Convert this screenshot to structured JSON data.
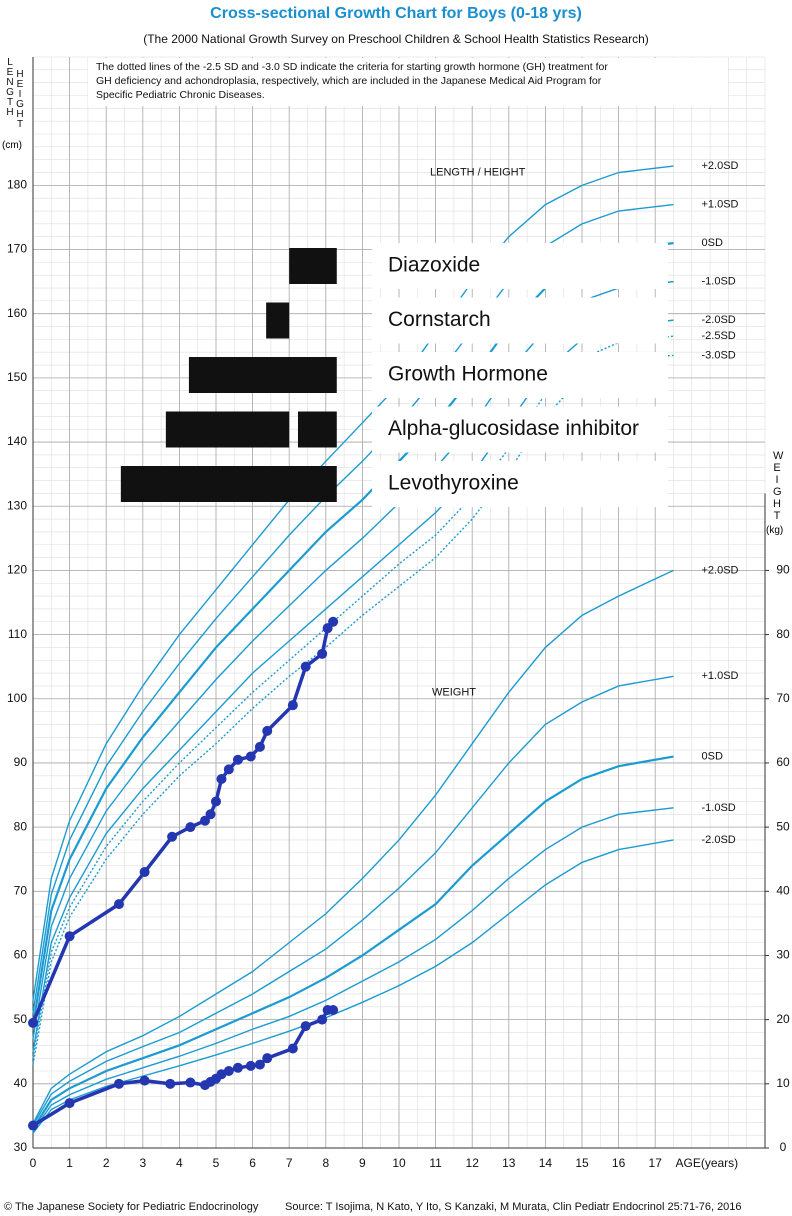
{
  "chart_data": {
    "type": "line",
    "title": "Cross-sectional Growth Chart for Boys (0-18 yrs)",
    "subtitle": "(The 2000 National Growth Survey on Preschool Children & School Health Statistics Research)",
    "note": [
      "The dotted lines of the -2.5 SD and -3.0 SD indicate the criteria for starting growth hormone (GH) treatment for",
      "GH deficiency and achondroplasia, respectively, which are included in the Japanese Medical Aid Program for",
      "Specific Pediatric Chronic Diseases."
    ],
    "copyright": "© The Japanese Society for Pediatric Endocrinology",
    "source": "Source: T Isojima, N Kato, Y Ito, S Kanzaki, M Murata, Clin Pediatr Endocrinol 25:71-76, 2016",
    "xlabel": "AGE(years)",
    "ylabel": [
      "LENGTH",
      "HEIGHT",
      "(cm)"
    ],
    "y2label": [
      "WEIGHT",
      "(kg)"
    ],
    "height_label": "LENGTH / HEIGHT",
    "weight_label": "WEIGHT",
    "xlim": [
      0,
      20
    ],
    "xticks": [
      0,
      1,
      2,
      3,
      4,
      5,
      6,
      7,
      8,
      9,
      10,
      11,
      12,
      13,
      14,
      15,
      16,
      17
    ],
    "ylim": [
      30,
      200
    ],
    "yticks": [
      30,
      40,
      50,
      60,
      70,
      80,
      90,
      100,
      110,
      120,
      130,
      140,
      150,
      160,
      170,
      180
    ],
    "y2lim": [
      0,
      170
    ],
    "y2ticks": [
      0,
      10,
      20,
      30,
      40,
      50,
      60,
      70,
      80,
      90
    ],
    "grid": true,
    "series": [
      {
        "name": "+2.0SD",
        "color": "#1b9bd1",
        "x": [
          0,
          0.5,
          1,
          2,
          3,
          4,
          5,
          6,
          7,
          8,
          9,
          10,
          11,
          12,
          13,
          14,
          15,
          16,
          17.5
        ],
        "values": [
          53,
          72,
          81,
          93,
          102,
          110,
          117,
          124,
          131,
          137,
          143,
          149,
          157,
          165,
          172,
          177,
          180,
          182,
          183
        ]
      },
      {
        "name": "+1.0SD",
        "color": "#1b9bd1",
        "x": [
          0,
          0.5,
          1,
          2,
          3,
          4,
          5,
          6,
          7,
          8,
          9,
          10,
          11,
          12,
          13,
          14,
          15,
          16,
          17.5
        ],
        "values": [
          51,
          69.5,
          78,
          89.5,
          98,
          105.5,
          112.5,
          119,
          125.5,
          131.5,
          137,
          143,
          150,
          157.5,
          165,
          170.5,
          174,
          176,
          177
        ]
      },
      {
        "name": "0SD",
        "color": "#1b9bd1",
        "width": 2.2,
        "x": [
          0,
          0.5,
          1,
          2,
          3,
          4,
          5,
          6,
          7,
          8,
          9,
          10,
          11,
          12,
          13,
          14,
          15,
          16,
          17.5
        ],
        "values": [
          49,
          67,
          75,
          86,
          94,
          101,
          108,
          114,
          120,
          126,
          131,
          137,
          143,
          150,
          158,
          164,
          168,
          170,
          171
        ]
      },
      {
        "name": "-1.0SD",
        "color": "#1b9bd1",
        "x": [
          0,
          0.5,
          1,
          2,
          3,
          4,
          5,
          6,
          7,
          8,
          9,
          10,
          11,
          12,
          13,
          14,
          15,
          16,
          17.5
        ],
        "values": [
          47,
          64.5,
          72,
          82.5,
          90,
          96.5,
          103,
          109,
          114.5,
          120,
          125,
          130.5,
          136,
          142.5,
          151,
          157.5,
          162,
          164,
          165
        ]
      },
      {
        "name": "-2.0SD",
        "color": "#1b9bd1",
        "x": [
          0,
          0.5,
          1,
          2,
          3,
          4,
          5,
          6,
          7,
          8,
          9,
          10,
          11,
          12,
          13,
          14,
          15,
          16,
          17.5
        ],
        "values": [
          45,
          62,
          69,
          79,
          86,
          92,
          98,
          104,
          109,
          114,
          119,
          124,
          129,
          135,
          143,
          151,
          156,
          158,
          159
        ]
      },
      {
        "name": "-2.5SD",
        "color": "#1b9bd1",
        "dotted": true,
        "x": [
          0,
          0.5,
          1,
          2,
          3,
          4,
          5,
          6,
          7,
          8,
          9,
          10,
          11,
          12,
          13,
          14,
          15,
          16,
          17.5
        ],
        "values": [
          44,
          60.5,
          67.5,
          77,
          84,
          90,
          95.5,
          101,
          106,
          111,
          116,
          121,
          125.5,
          131.5,
          139,
          147.5,
          153,
          155.5,
          156.5
        ]
      },
      {
        "name": "-3.0SD",
        "color": "#1b9bd1",
        "dotted": true,
        "x": [
          0,
          0.5,
          1,
          2,
          3,
          4,
          5,
          6,
          7,
          8,
          9,
          10,
          11,
          12,
          13,
          14,
          15,
          16,
          17.5
        ],
        "values": [
          43,
          59,
          66,
          75,
          82,
          88,
          93,
          98.5,
          103.5,
          108,
          113,
          117.5,
          122,
          128,
          135.5,
          144,
          150,
          153,
          153.5
        ]
      },
      {
        "name": "+2.0SD",
        "color": "#1b9bd1",
        "axis": "y2",
        "x": [
          0,
          0.5,
          1,
          2,
          3,
          4,
          5,
          6,
          7,
          8,
          9,
          10,
          11,
          12,
          13,
          14,
          15,
          16,
          17.5
        ],
        "values": [
          3.8,
          9.3,
          11.5,
          15,
          17.5,
          20.5,
          24,
          27.5,
          32,
          36.5,
          42,
          48,
          55,
          63,
          71,
          78,
          83,
          86,
          90
        ]
      },
      {
        "name": "+1.0SD",
        "color": "#1b9bd1",
        "axis": "y2",
        "x": [
          0,
          0.5,
          1,
          2,
          3,
          4,
          5,
          6,
          7,
          8,
          9,
          10,
          11,
          12,
          13,
          14,
          15,
          16,
          17.5
        ],
        "values": [
          3.5,
          8.4,
          10.4,
          13.5,
          15.8,
          18,
          21,
          24,
          27.5,
          31,
          35.5,
          40.5,
          46,
          53,
          60,
          66,
          69.5,
          72,
          73.5
        ]
      },
      {
        "name": "0SD",
        "color": "#1b9bd1",
        "width": 2.2,
        "axis": "y2",
        "x": [
          0,
          0.5,
          1,
          2,
          3,
          4,
          5,
          6,
          7,
          8,
          9,
          10,
          11,
          12,
          13,
          14,
          15,
          16,
          17.5
        ],
        "values": [
          3,
          7.5,
          9.3,
          12,
          14,
          16,
          18.5,
          21,
          23.5,
          26.5,
          30,
          34,
          38,
          44,
          49,
          54,
          57.5,
          59.5,
          61
        ]
      },
      {
        "name": "-1.0SD",
        "color": "#1b9bd1",
        "axis": "y2",
        "x": [
          0,
          0.5,
          1,
          2,
          3,
          4,
          5,
          6,
          7,
          8,
          9,
          10,
          11,
          12,
          13,
          14,
          15,
          16,
          17.5
        ],
        "values": [
          2.6,
          6.7,
          8.3,
          10.7,
          12.5,
          14.3,
          16.3,
          18.5,
          20.5,
          23,
          26,
          29,
          32.5,
          37,
          42,
          46.5,
          50,
          52,
          53
        ]
      },
      {
        "name": "-2.0SD",
        "color": "#1b9bd1",
        "axis": "y2",
        "x": [
          0,
          0.5,
          1,
          2,
          3,
          4,
          5,
          6,
          7,
          8,
          9,
          10,
          11,
          12,
          13,
          14,
          15,
          16,
          17.5
        ],
        "values": [
          2.3,
          6,
          7.5,
          9.6,
          11.2,
          12.8,
          14.5,
          16.3,
          18.2,
          20.3,
          22.7,
          25.3,
          28.3,
          32,
          36.5,
          41,
          44.5,
          46.5,
          48
        ]
      },
      {
        "color": "#2436b0",
        "width": 3.5,
        "marker": true,
        "x": [
          0,
          1,
          2.35,
          3.05,
          3.8,
          4.3,
          4.7,
          4.85,
          5,
          5.15,
          5.35,
          5.6,
          5.95,
          6.2,
          6.4,
          7.1,
          7.45,
          7.9,
          8.05,
          8.2
        ],
        "values": [
          49.5,
          63,
          68,
          73,
          78.5,
          80,
          81,
          82,
          84,
          87.5,
          89,
          90.5,
          91,
          92.5,
          95,
          99,
          105,
          107,
          111,
          112
        ]
      },
      {
        "color": "#2436b0",
        "width": 3.5,
        "marker": true,
        "axis": "y2",
        "x": [
          0,
          1,
          2.35,
          3.05,
          3.75,
          4.3,
          4.7,
          4.85,
          5,
          5.15,
          5.35,
          5.6,
          5.95,
          6.2,
          6.4,
          7.1,
          7.45,
          7.9,
          8.05,
          8.2
        ],
        "values": [
          3.5,
          7,
          10,
          10.5,
          10,
          10.2,
          9.8,
          10.3,
          10.8,
          11.5,
          12,
          12.5,
          12.8,
          13,
          14,
          15.5,
          19,
          20,
          21.5,
          21.5
        ]
      }
    ],
    "treatments": [
      {
        "name": "Diazoxide",
        "periods": [
          [
            7.0,
            8.3
          ]
        ]
      },
      {
        "name": "Cornstarch",
        "periods": [
          [
            6.37,
            7.0
          ]
        ]
      },
      {
        "name": "Growth Hormone",
        "periods": [
          [
            4.26,
            8.3
          ]
        ]
      },
      {
        "name": "Alpha-glucosidase inhibitor",
        "periods": [
          [
            3.63,
            7.0
          ],
          [
            7.24,
            8.3
          ]
        ]
      },
      {
        "name": "Levothyroxine",
        "periods": [
          [
            2.4,
            8.3
          ]
        ]
      }
    ]
  }
}
